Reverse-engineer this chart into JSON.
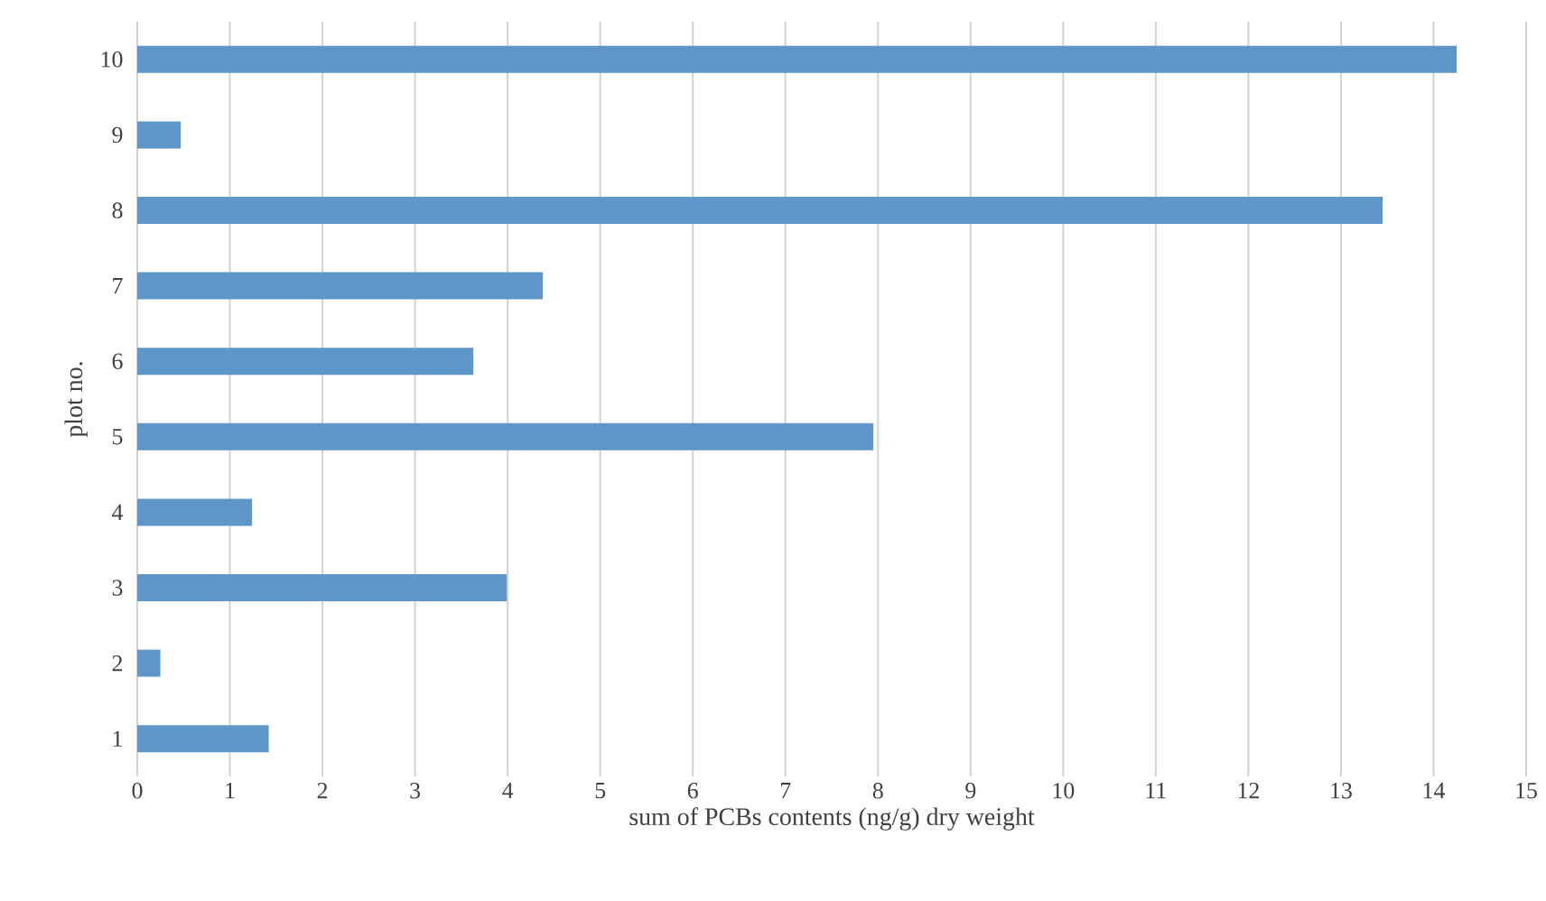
{
  "chart_data": {
    "type": "bar",
    "orientation": "horizontal",
    "xlabel": "sum of PCBs contents (ng/g) dry weight",
    "ylabel": "plot no.",
    "categories": [
      "10",
      "9",
      "8",
      "7",
      "6",
      "5",
      "4",
      "3",
      "2",
      "1"
    ],
    "values": [
      14.25,
      0.47,
      13.45,
      4.38,
      3.63,
      7.95,
      1.24,
      3.99,
      0.25,
      1.42
    ],
    "color": "#5f96c9",
    "xlim": [
      0,
      15
    ],
    "xticks": [
      0,
      1,
      2,
      3,
      4,
      5,
      6,
      7,
      8,
      9,
      10,
      11,
      12,
      13,
      14,
      15
    ],
    "grid": "x"
  }
}
